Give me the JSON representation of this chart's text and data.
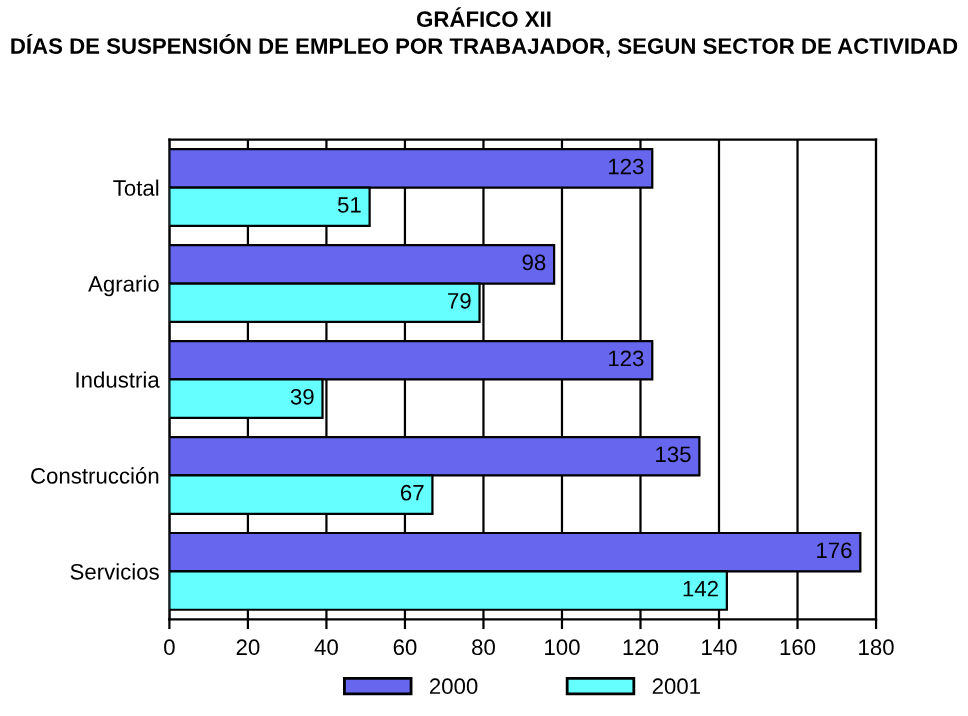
{
  "chart_data": {
    "type": "bar",
    "orientation": "horizontal",
    "title": "GRÁFICO XII\nDÍAS DE SUSPENSIÓN DE EMPLEO POR TRABAJADOR, SEGUN SECTOR DE ACTIVIDAD",
    "categories": [
      "Total",
      "Agrario",
      "Industria",
      "Construcción",
      "Servicios"
    ],
    "series": [
      {
        "name": "2000",
        "color": "#6666ee",
        "values": [
          123,
          98,
          123,
          135,
          176
        ]
      },
      {
        "name": "2001",
        "color": "#66ffff",
        "values": [
          51,
          79,
          39,
          67,
          142
        ]
      }
    ],
    "xlim": [
      0,
      180
    ],
    "xticks": [
      0,
      20,
      40,
      60,
      80,
      100,
      120,
      140,
      160,
      180
    ],
    "grid": "x",
    "legend": "bottom",
    "data_labels": true
  }
}
